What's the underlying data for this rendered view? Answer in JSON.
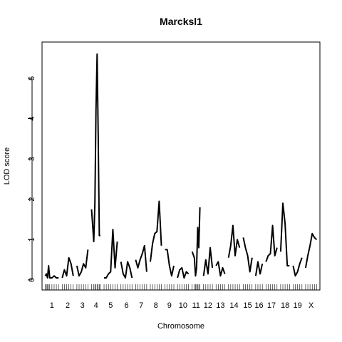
{
  "chart_data": {
    "type": "line",
    "title": "Marcksl1",
    "xlabel": "Chromosome",
    "ylabel": "LOD score",
    "ylim": [
      -0.25,
      5.9
    ],
    "yticks": [
      0,
      1,
      2,
      3,
      4,
      5
    ],
    "grid": false,
    "legend": "none",
    "line_color": "#000000",
    "chromosomes": [
      {
        "label": "1",
        "x": [
          0,
          5,
          10,
          15,
          20,
          30,
          40,
          50,
          60
        ],
        "y": [
          0.1,
          0.15,
          0.05,
          0.35,
          0.05,
          0.05,
          0.1,
          0.05,
          0.05
        ]
      },
      {
        "label": "2",
        "x": [
          0,
          10,
          20,
          30,
          40,
          50
        ],
        "y": [
          0.05,
          0.25,
          0.1,
          0.55,
          0.4,
          0.1
        ]
      },
      {
        "label": "3",
        "x": [
          0,
          10,
          20,
          30,
          40,
          50
        ],
        "y": [
          0.35,
          0.1,
          0.2,
          0.4,
          0.3,
          0.75
        ]
      },
      {
        "label": "4",
        "x": [
          0,
          10,
          15,
          20,
          25,
          30,
          35,
          40
        ],
        "y": [
          1.75,
          0.95,
          1.9,
          4.2,
          5.6,
          3.6,
          1.1,
          1.1
        ]
      },
      {
        "label": "5",
        "x": [
          0,
          10,
          20,
          30,
          40,
          50,
          60
        ],
        "y": [
          0.05,
          0.05,
          0.15,
          0.2,
          1.25,
          0.3,
          0.95
        ]
      },
      {
        "label": "6",
        "x": [
          0,
          10,
          20,
          30,
          40,
          50
        ],
        "y": [
          0.45,
          0.15,
          0.05,
          0.45,
          0.3,
          0.05
        ]
      },
      {
        "label": "7",
        "x": [
          0,
          10,
          20,
          30,
          40,
          50
        ],
        "y": [
          0.5,
          0.3,
          0.5,
          0.65,
          0.85,
          0.2
        ]
      },
      {
        "label": "8",
        "x": [
          0,
          10,
          20,
          30,
          40,
          50
        ],
        "y": [
          0.45,
          0.9,
          1.15,
          1.2,
          1.95,
          0.85
        ]
      },
      {
        "label": "9",
        "x": [
          0,
          10,
          20,
          30,
          40
        ],
        "y": [
          0.75,
          0.75,
          0.35,
          0.1,
          0.35
        ]
      },
      {
        "label": "10",
        "x": [
          0,
          10,
          20,
          30,
          40,
          50
        ],
        "y": [
          0.05,
          0.25,
          0.3,
          0.05,
          0.2,
          0.15
        ]
      },
      {
        "label": "11",
        "x": [
          0,
          10,
          15,
          20,
          25,
          30,
          35
        ],
        "y": [
          0.7,
          0.55,
          0.1,
          0.3,
          1.3,
          0.8,
          1.8
        ]
      },
      {
        "label": "12",
        "x": [
          0,
          10,
          20,
          30,
          40
        ],
        "y": [
          0.1,
          0.5,
          0.15,
          0.8,
          0.3
        ]
      },
      {
        "label": "13",
        "x": [
          0,
          10,
          20,
          30,
          40
        ],
        "y": [
          0.35,
          0.45,
          0.1,
          0.3,
          0.15
        ]
      },
      {
        "label": "14",
        "x": [
          0,
          10,
          20,
          30,
          40,
          50
        ],
        "y": [
          0.55,
          0.85,
          1.35,
          0.6,
          1.0,
          0.8
        ]
      },
      {
        "label": "15",
        "x": [
          0,
          10,
          20,
          30,
          40
        ],
        "y": [
          1.05,
          0.8,
          0.6,
          0.2,
          0.55
        ]
      },
      {
        "label": "16",
        "x": [
          0,
          10,
          20,
          30
        ],
        "y": [
          0.1,
          0.45,
          0.15,
          0.4
        ]
      },
      {
        "label": "17",
        "x": [
          0,
          10,
          20,
          30,
          40,
          50
        ],
        "y": [
          0.45,
          0.6,
          0.65,
          1.35,
          0.6,
          0.8
        ]
      },
      {
        "label": "18",
        "x": [
          0,
          10,
          20,
          30,
          40
        ],
        "y": [
          0.7,
          1.9,
          1.4,
          0.35,
          0.35
        ]
      },
      {
        "label": "19",
        "x": [
          0,
          10,
          20,
          30,
          40
        ],
        "y": [
          0.35,
          0.1,
          0.2,
          0.4,
          0.55
        ]
      },
      {
        "label": "X",
        "x": [
          0,
          10,
          20,
          30,
          40,
          50
        ],
        "y": [
          0.3,
          0.6,
          0.85,
          1.15,
          1.05,
          1.0
        ]
      }
    ]
  }
}
